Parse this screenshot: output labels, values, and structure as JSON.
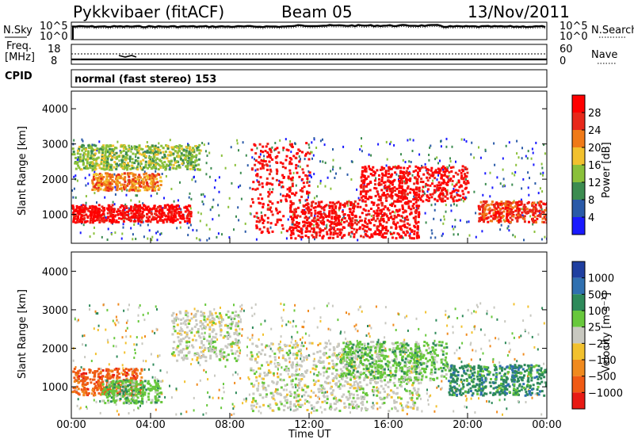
{
  "header": {
    "station": "Pykkvibaer (fitACF)",
    "beam": "Beam 05",
    "date": "13/Nov/2011"
  },
  "noise_panel": {
    "left_label": "N.Sky",
    "right_label": "N.Search",
    "left_ticks": [
      "10^5",
      "10^0"
    ],
    "right_ticks": [
      "10^5",
      "10^0"
    ]
  },
  "freq_panel": {
    "left_label_1": "Freq.",
    "left_label_2": "[MHz]",
    "right_label": "Nave",
    "left_ticks": [
      "18",
      "8"
    ],
    "right_ticks": [
      "60",
      "0"
    ]
  },
  "cpid": {
    "label": "CPID",
    "value": "normal (fast stereo) 153"
  },
  "time_axis": {
    "label": "Time UT",
    "ticks": [
      "00:00",
      "04:00",
      "08:00",
      "12:00",
      "16:00",
      "20:00",
      "00:00"
    ]
  },
  "power_panel": {
    "ylabel": "Slant Range [km]",
    "yticks": [
      "1000",
      "2000",
      "3000",
      "4000"
    ],
    "colorbar_label": "Power [dB]",
    "colorbar_ticks": [
      "4",
      "8",
      "12",
      "16",
      "20",
      "24",
      "28"
    ],
    "colors": [
      "#1a1aff",
      "#2a5aa8",
      "#3c8c50",
      "#8ac03a",
      "#f2c12e",
      "#f07a18",
      "#e8281a",
      "#ff0000"
    ]
  },
  "velocity_panel": {
    "ylabel": "Slant Range [km]",
    "yticks": [
      "1000",
      "2000",
      "3000",
      "4000"
    ],
    "colorbar_label": "Velocity [m s⁻¹]",
    "colorbar_ticks": [
      "1000",
      "500",
      "100",
      "25",
      "−25",
      "−100",
      "−500",
      "−1000"
    ],
    "colors": [
      "#1f3fa0",
      "#3070b0",
      "#2e8a5a",
      "#68c83c",
      "#c8c8c0",
      "#f2c12e",
      "#f08a1e",
      "#f05a14",
      "#e81a14"
    ]
  },
  "chart_data": {
    "type": "heatmap",
    "x_range_hours": [
      0,
      24
    ],
    "y_range_km": [
      180,
      4500
    ],
    "power_bands": [
      {
        "from_h": 0.0,
        "to_h": 6.0,
        "range_km": [
          800,
          1300
        ],
        "power_db": 28
      },
      {
        "from_h": 1.0,
        "to_h": 4.5,
        "range_km": [
          1700,
          2200
        ],
        "power_db": 20
      },
      {
        "from_h": 0.0,
        "to_h": 6.5,
        "range_km": [
          2300,
          3000
        ],
        "power_db": 12
      },
      {
        "from_h": 9.0,
        "to_h": 12.0,
        "range_km": [
          500,
          3100
        ],
        "power_db": 26
      },
      {
        "from_h": 11.0,
        "to_h": 17.5,
        "range_km": [
          350,
          1400
        ],
        "power_db": 28
      },
      {
        "from_h": 14.5,
        "to_h": 20.0,
        "range_km": [
          1400,
          2400
        ],
        "power_db": 27
      },
      {
        "from_h": 20.5,
        "to_h": 24.0,
        "range_km": [
          800,
          1400
        ],
        "power_db": 24
      }
    ],
    "velocity_bands": [
      {
        "from_h": 0.0,
        "to_h": 3.5,
        "range_km": [
          800,
          1500
        ],
        "velocity": -500
      },
      {
        "from_h": 1.5,
        "to_h": 4.5,
        "range_km": [
          600,
          1200
        ],
        "velocity": 100
      },
      {
        "from_h": 5.0,
        "to_h": 8.5,
        "range_km": [
          1700,
          3000
        ],
        "velocity": 0
      },
      {
        "from_h": 9.0,
        "to_h": 17.5,
        "range_km": [
          400,
          2200
        ],
        "velocity": 0
      },
      {
        "from_h": 19.0,
        "to_h": 24.0,
        "range_km": [
          800,
          1600
        ],
        "velocity": 500
      },
      {
        "from_h": 13.5,
        "to_h": 19.0,
        "range_km": [
          1200,
          2200
        ],
        "velocity": 100
      }
    ]
  }
}
